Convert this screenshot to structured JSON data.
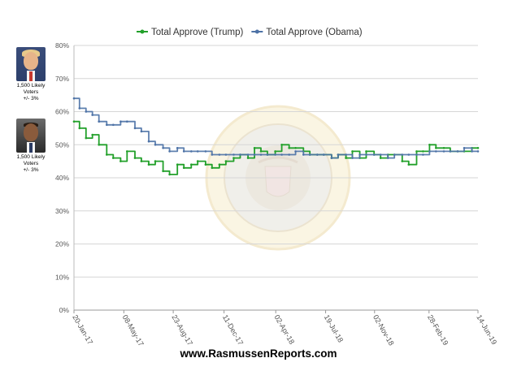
{
  "footer": "www.RasmussenReports.com",
  "sidebar": [
    {
      "name": "trump-portrait-icon",
      "lines": [
        "1,500 Likely",
        "Voters",
        "+/- 3%"
      ]
    },
    {
      "name": "obama-portrait-icon",
      "lines": [
        "1,500 Likely",
        "Voters",
        "+/- 3%"
      ]
    }
  ],
  "watermark_icon": "presidential-seal-watermark-icon",
  "chart_data": {
    "type": "line",
    "x_ticks": [
      "20-Jan-17",
      "08-May-17",
      "23-Aug-17",
      "11-Dec-17",
      "02-Apr-18",
      "19-Jul-18",
      "02-Nov-18",
      "28-Feb-19",
      "14-Jun-19"
    ],
    "y_ticks": [
      "0%",
      "10%",
      "20%",
      "30%",
      "40%",
      "50%",
      "60%",
      "70%",
      "80%"
    ],
    "ylim": [
      0,
      80
    ],
    "grid": true,
    "legend_position": "top-center",
    "series": [
      {
        "name": "Total Approve (Trump)",
        "color": "#22a02a",
        "x": [
          "20-Jan-17",
          "01-Feb-17",
          "15-Feb-17",
          "01-Mar-17",
          "15-Mar-17",
          "01-Apr-17",
          "15-Apr-17",
          "01-May-17",
          "15-May-17",
          "01-Jun-17",
          "15-Jun-17",
          "01-Jul-17",
          "15-Jul-17",
          "01-Aug-17",
          "15-Aug-17",
          "01-Sep-17",
          "15-Sep-17",
          "01-Oct-17",
          "15-Oct-17",
          "01-Nov-17",
          "15-Nov-17",
          "01-Dec-17",
          "15-Dec-17",
          "01-Jan-18",
          "15-Jan-18",
          "01-Feb-18",
          "15-Feb-18",
          "01-Mar-18",
          "15-Mar-18",
          "01-Apr-18",
          "15-Apr-18",
          "01-May-18",
          "15-May-18",
          "01-Jun-18",
          "15-Jun-18",
          "01-Jul-18",
          "15-Jul-18",
          "01-Aug-18",
          "15-Aug-18",
          "01-Sep-18",
          "15-Sep-18",
          "01-Oct-18",
          "15-Oct-18",
          "01-Nov-18",
          "15-Nov-18",
          "01-Dec-18",
          "15-Dec-18",
          "01-Jan-19",
          "15-Jan-19",
          "01-Feb-19",
          "15-Feb-19",
          "01-Mar-19",
          "15-Mar-19",
          "01-Apr-19",
          "15-Apr-19",
          "01-May-19",
          "15-May-19",
          "01-Jun-19",
          "14-Jun-19"
        ],
        "values": [
          57,
          55,
          52,
          53,
          50,
          47,
          46,
          45,
          48,
          46,
          45,
          44,
          45,
          42,
          41,
          44,
          43,
          44,
          45,
          44,
          43,
          44,
          45,
          46,
          47,
          46,
          49,
          48,
          47,
          48,
          50,
          49,
          49,
          48,
          47,
          47,
          47,
          46,
          47,
          46,
          48,
          46,
          48,
          47,
          46,
          47,
          47,
          45,
          44,
          48,
          48,
          50,
          49,
          49,
          48,
          48,
          48,
          49,
          49
        ]
      },
      {
        "name": "Total Approve (Obama)",
        "color": "#4d72a6",
        "x": [
          "20-Jan-17",
          "01-Feb-17",
          "15-Feb-17",
          "01-Mar-17",
          "15-Mar-17",
          "01-Apr-17",
          "15-Apr-17",
          "01-May-17",
          "15-May-17",
          "01-Jun-17",
          "15-Jun-17",
          "01-Jul-17",
          "15-Jul-17",
          "01-Aug-17",
          "15-Aug-17",
          "01-Sep-17",
          "15-Sep-17",
          "01-Oct-17",
          "15-Oct-17",
          "01-Nov-17",
          "15-Nov-17",
          "01-Dec-17",
          "15-Dec-17",
          "01-Jan-18",
          "15-Jan-18",
          "01-Feb-18",
          "15-Feb-18",
          "01-Mar-18",
          "15-Mar-18",
          "01-Apr-18",
          "15-Apr-18",
          "01-May-18",
          "15-May-18",
          "01-Jun-18",
          "15-Jun-18",
          "01-Jul-18",
          "15-Jul-18",
          "01-Aug-18",
          "15-Aug-18",
          "01-Sep-18",
          "15-Sep-18",
          "01-Oct-18",
          "15-Oct-18",
          "01-Nov-18",
          "15-Nov-18",
          "01-Dec-18",
          "15-Dec-18",
          "01-Jan-19",
          "15-Jan-19",
          "01-Feb-19",
          "15-Feb-19",
          "01-Mar-19",
          "15-Mar-19",
          "01-Apr-19",
          "15-Apr-19",
          "01-May-19",
          "15-May-19",
          "01-Jun-19",
          "14-Jun-19"
        ],
        "values": [
          64,
          61,
          60,
          59,
          57,
          56,
          56,
          57,
          57,
          55,
          54,
          51,
          50,
          49,
          48,
          49,
          48,
          48,
          48,
          48,
          47,
          47,
          47,
          47,
          47,
          47,
          47,
          47,
          47,
          47,
          47,
          47,
          48,
          47,
          47,
          47,
          47,
          46,
          47,
          47,
          46,
          47,
          47,
          47,
          47,
          46,
          47,
          47,
          47,
          47,
          47,
          48,
          48,
          48,
          48,
          48,
          49,
          48,
          48
        ]
      }
    ]
  }
}
